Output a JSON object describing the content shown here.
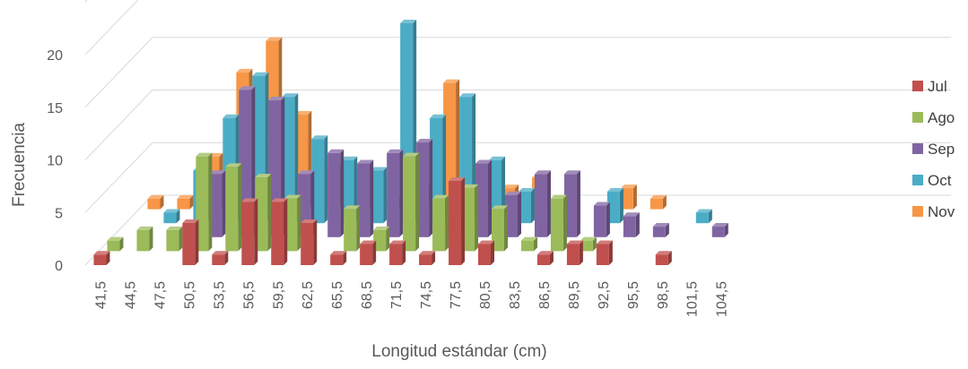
{
  "chart_data": {
    "type": "bar",
    "subtype": "3d-clustered-column",
    "xlabel": "Longitud estándar (cm)",
    "ylabel": "Frecuencia",
    "ylim": [
      0,
      25
    ],
    "yticks": [
      0,
      5,
      10,
      15,
      20
    ],
    "grid": true,
    "legend_position": "right",
    "categories": [
      "41,5",
      "44,5",
      "47,5",
      "50,5",
      "53,5",
      "56,5",
      "59,5",
      "62,5",
      "65,5",
      "68,5",
      "71,5",
      "74,5",
      "77,5",
      "80,5",
      "83,5",
      "86,5",
      "89,5",
      "92,5",
      "95,5",
      "98,5",
      "101,5",
      "104,5"
    ],
    "series": [
      {
        "name": "Jul",
        "color": "#c0504d",
        "values": [
          1,
          0,
          0,
          4,
          1,
          6,
          6,
          4,
          1,
          2,
          2,
          1,
          8,
          2,
          0,
          1,
          2,
          2,
          0,
          1,
          0,
          0
        ]
      },
      {
        "name": "Ago",
        "color": "#9bbb59",
        "values": [
          1,
          2,
          2,
          9,
          8,
          7,
          5,
          0,
          4,
          2,
          9,
          5,
          6,
          4,
          1,
          5,
          1,
          0,
          0,
          0,
          0,
          0
        ]
      },
      {
        "name": "Sep",
        "color": "#8064a2",
        "values": [
          0,
          0,
          0,
          6,
          14,
          13,
          6,
          8,
          7,
          8,
          9,
          2,
          7,
          4,
          6,
          6,
          3,
          2,
          1,
          0,
          1,
          0
        ]
      },
      {
        "name": "Oct",
        "color": "#4bacc6",
        "values": [
          0,
          1,
          5,
          10,
          14,
          12,
          8,
          6,
          5,
          19,
          10,
          12,
          6,
          3,
          1,
          0,
          3,
          0,
          0,
          1,
          0,
          0
        ]
      },
      {
        "name": "Nov",
        "color": "#f79646",
        "values": [
          1,
          1,
          5,
          13,
          16,
          9,
          4,
          4,
          1,
          2,
          12,
          4,
          2,
          3,
          0,
          0,
          2,
          1,
          0,
          0,
          0,
          0
        ]
      }
    ]
  }
}
